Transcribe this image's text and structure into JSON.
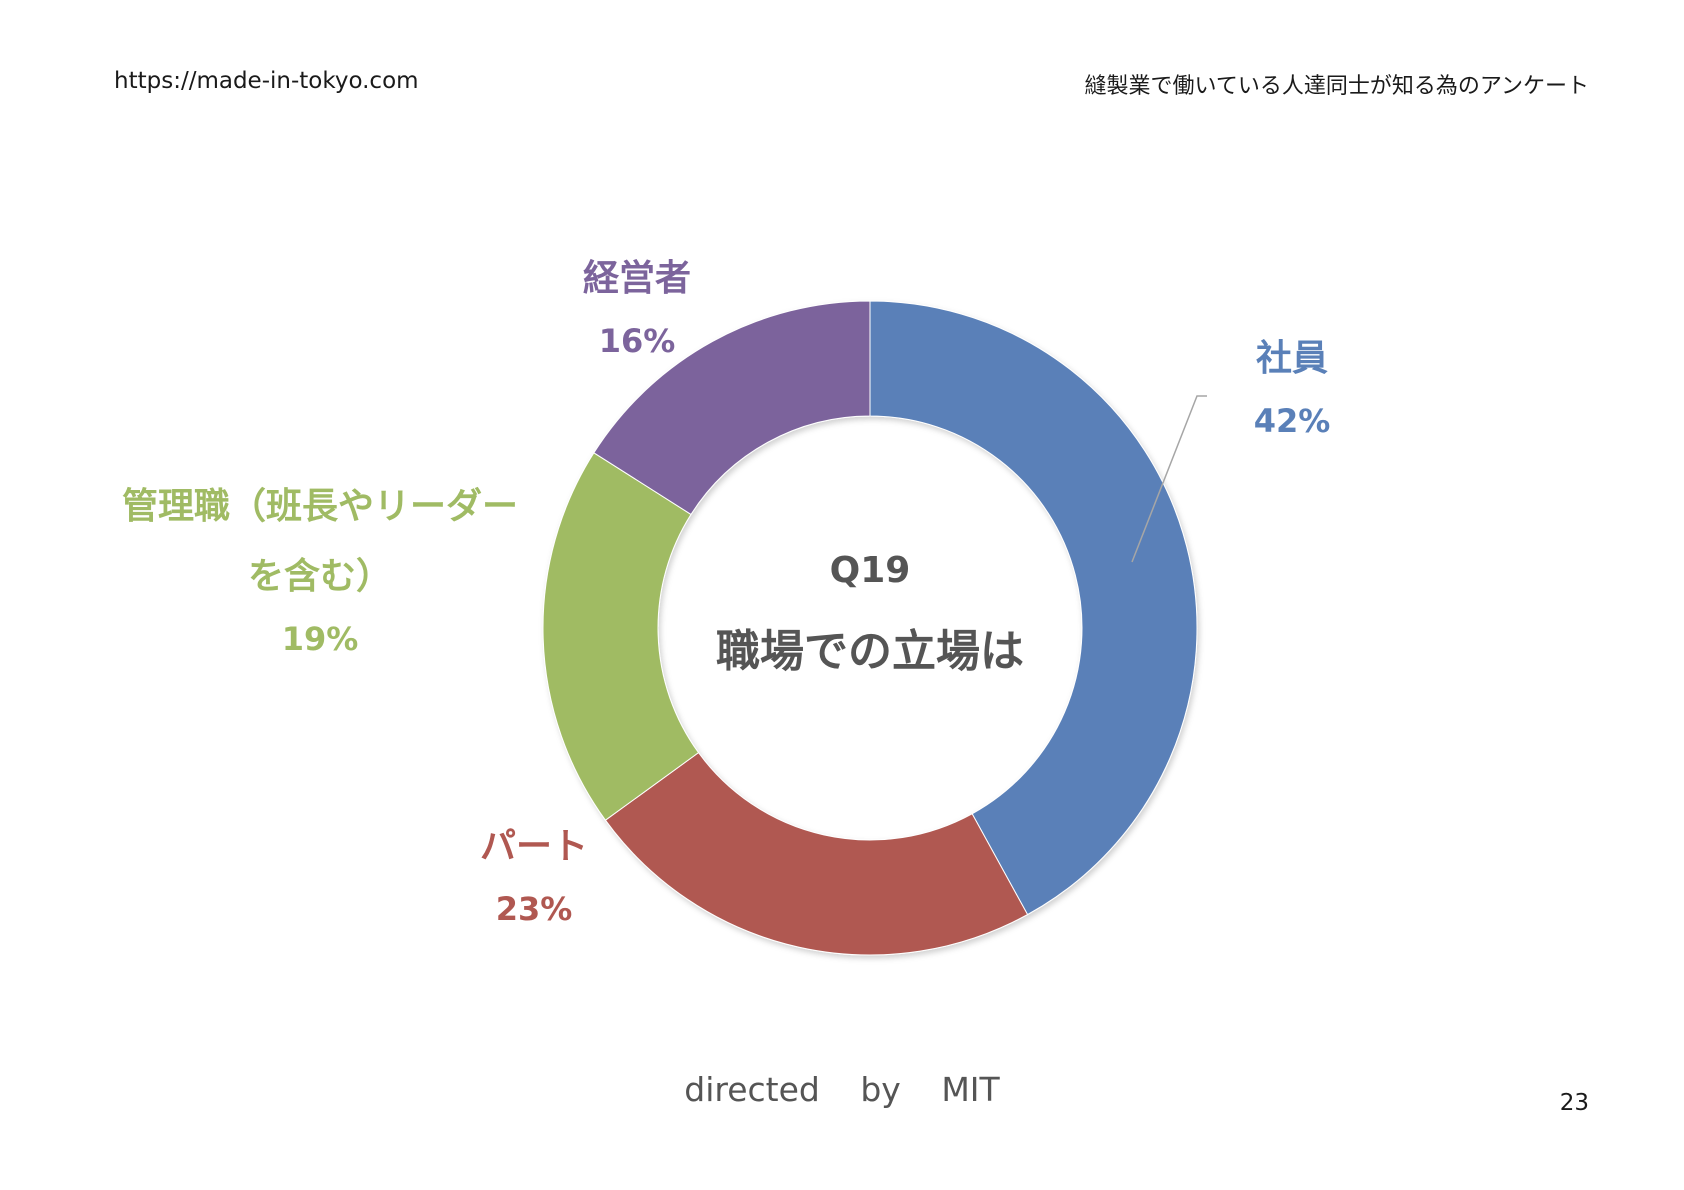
{
  "header": {
    "url": "https://made-in-tokyo.com",
    "title": "縫製業で働いている人達同士が知る為のアンケート"
  },
  "footer": {
    "credit": "directed by MIT"
  },
  "page_number": "23",
  "chart_data": {
    "type": "donut",
    "center_label": [
      "Q19",
      "職場での立場は"
    ],
    "slices": [
      {
        "label": [
          "社員"
        ],
        "percent_label": "42%",
        "value": 42,
        "color": "#5a80b8"
      },
      {
        "label": [
          "パート"
        ],
        "percent_label": "23%",
        "value": 23,
        "color": "#b05851"
      },
      {
        "label": [
          "管理職（班長やリーダー",
          "を含む）"
        ],
        "percent_label": "19%",
        "value": 19,
        "color": "#a0bb64"
      },
      {
        "label": [
          "経営者"
        ],
        "percent_label": "16%",
        "value": 16,
        "color": "#7c649c"
      }
    ],
    "legend": "none"
  }
}
